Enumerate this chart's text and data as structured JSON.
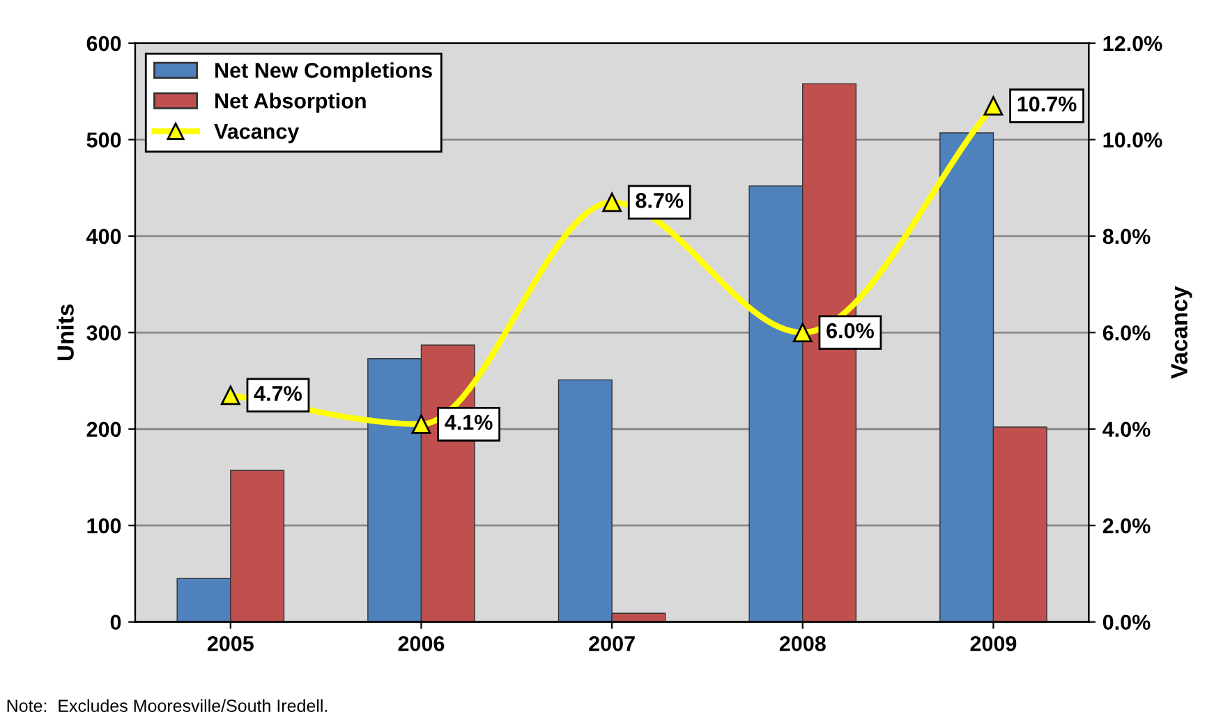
{
  "chart_data": {
    "type": "bar",
    "categories": [
      "2005",
      "2006",
      "2007",
      "2008",
      "2009"
    ],
    "ylabel": "Units",
    "y2label": "Vacancy",
    "ylim": [
      0,
      600
    ],
    "yticks": [
      0,
      100,
      200,
      300,
      400,
      500,
      600
    ],
    "y2lim": [
      0,
      12
    ],
    "y2ticks": [
      {
        "value": 0,
        "label": "0.0%"
      },
      {
        "value": 2,
        "label": "2.0%"
      },
      {
        "value": 4,
        "label": "4.0%"
      },
      {
        "value": 6,
        "label": "6.0%"
      },
      {
        "value": 8,
        "label": "8.0%"
      },
      {
        "value": 10,
        "label": "10.0%"
      },
      {
        "value": 12,
        "label": "12.0%"
      }
    ],
    "series": [
      {
        "name": "Net New Completions",
        "color": "#4f81bd",
        "values": [
          45,
          273,
          251,
          452,
          507
        ]
      },
      {
        "name": "Net Absorption",
        "color": "#c0504d",
        "values": [
          157,
          287,
          9,
          558,
          202
        ]
      },
      {
        "name": "Vacancy",
        "type": "line",
        "axis": "y2",
        "color": "#ffff00",
        "marker": "triangle",
        "values": [
          4.7,
          4.1,
          8.7,
          6.0,
          10.7
        ],
        "value_labels": [
          "4.7%",
          "4.1%",
          "8.7%",
          "6.0%",
          "10.7%"
        ]
      }
    ],
    "grid": "y",
    "legend": "top left",
    "annotations": [
      "Note:  Excludes Mooresville/South Iredell."
    ]
  }
}
